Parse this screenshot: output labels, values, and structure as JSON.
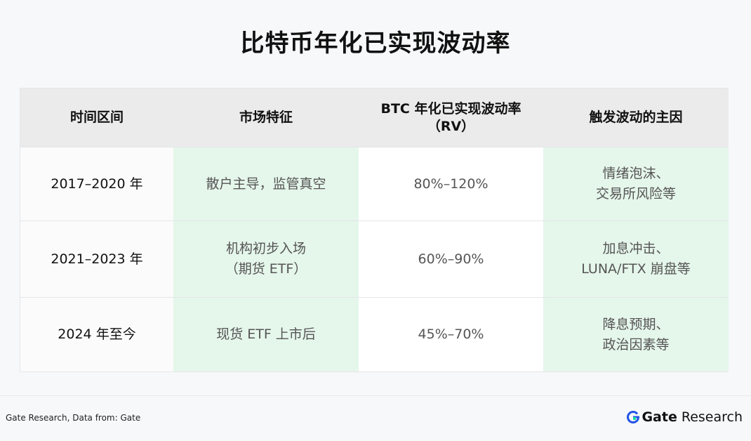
{
  "header": {
    "title": "比特币年化已实现波动率"
  },
  "table": {
    "columns": [
      "时间区间",
      "市场特征",
      [
        "BTC 年化已实现波动率",
        "（RV）"
      ],
      "触发波动的主因"
    ],
    "rows": [
      [
        "2017–2020 年",
        [
          "散户主导，监管真空"
        ],
        [
          "80%–120%"
        ],
        [
          "情绪泡沫、",
          "交易所风险等"
        ]
      ],
      [
        "2021–2023 年",
        [
          "机构初步入场",
          "（期货 ETF）"
        ],
        [
          "60%–90%"
        ],
        [
          "加息冲击、",
          "LUNA/FTX 崩盘等"
        ]
      ],
      [
        "2024 年至今",
        [
          "现货 ETF 上市后"
        ],
        [
          "45%–70%"
        ],
        [
          "降息预期、",
          "政治因素等"
        ]
      ]
    ]
  },
  "footer": {
    "source": "Gate Research, Data from: Gate",
    "logo_brand": "Gate",
    "logo_text": "Research"
  }
}
